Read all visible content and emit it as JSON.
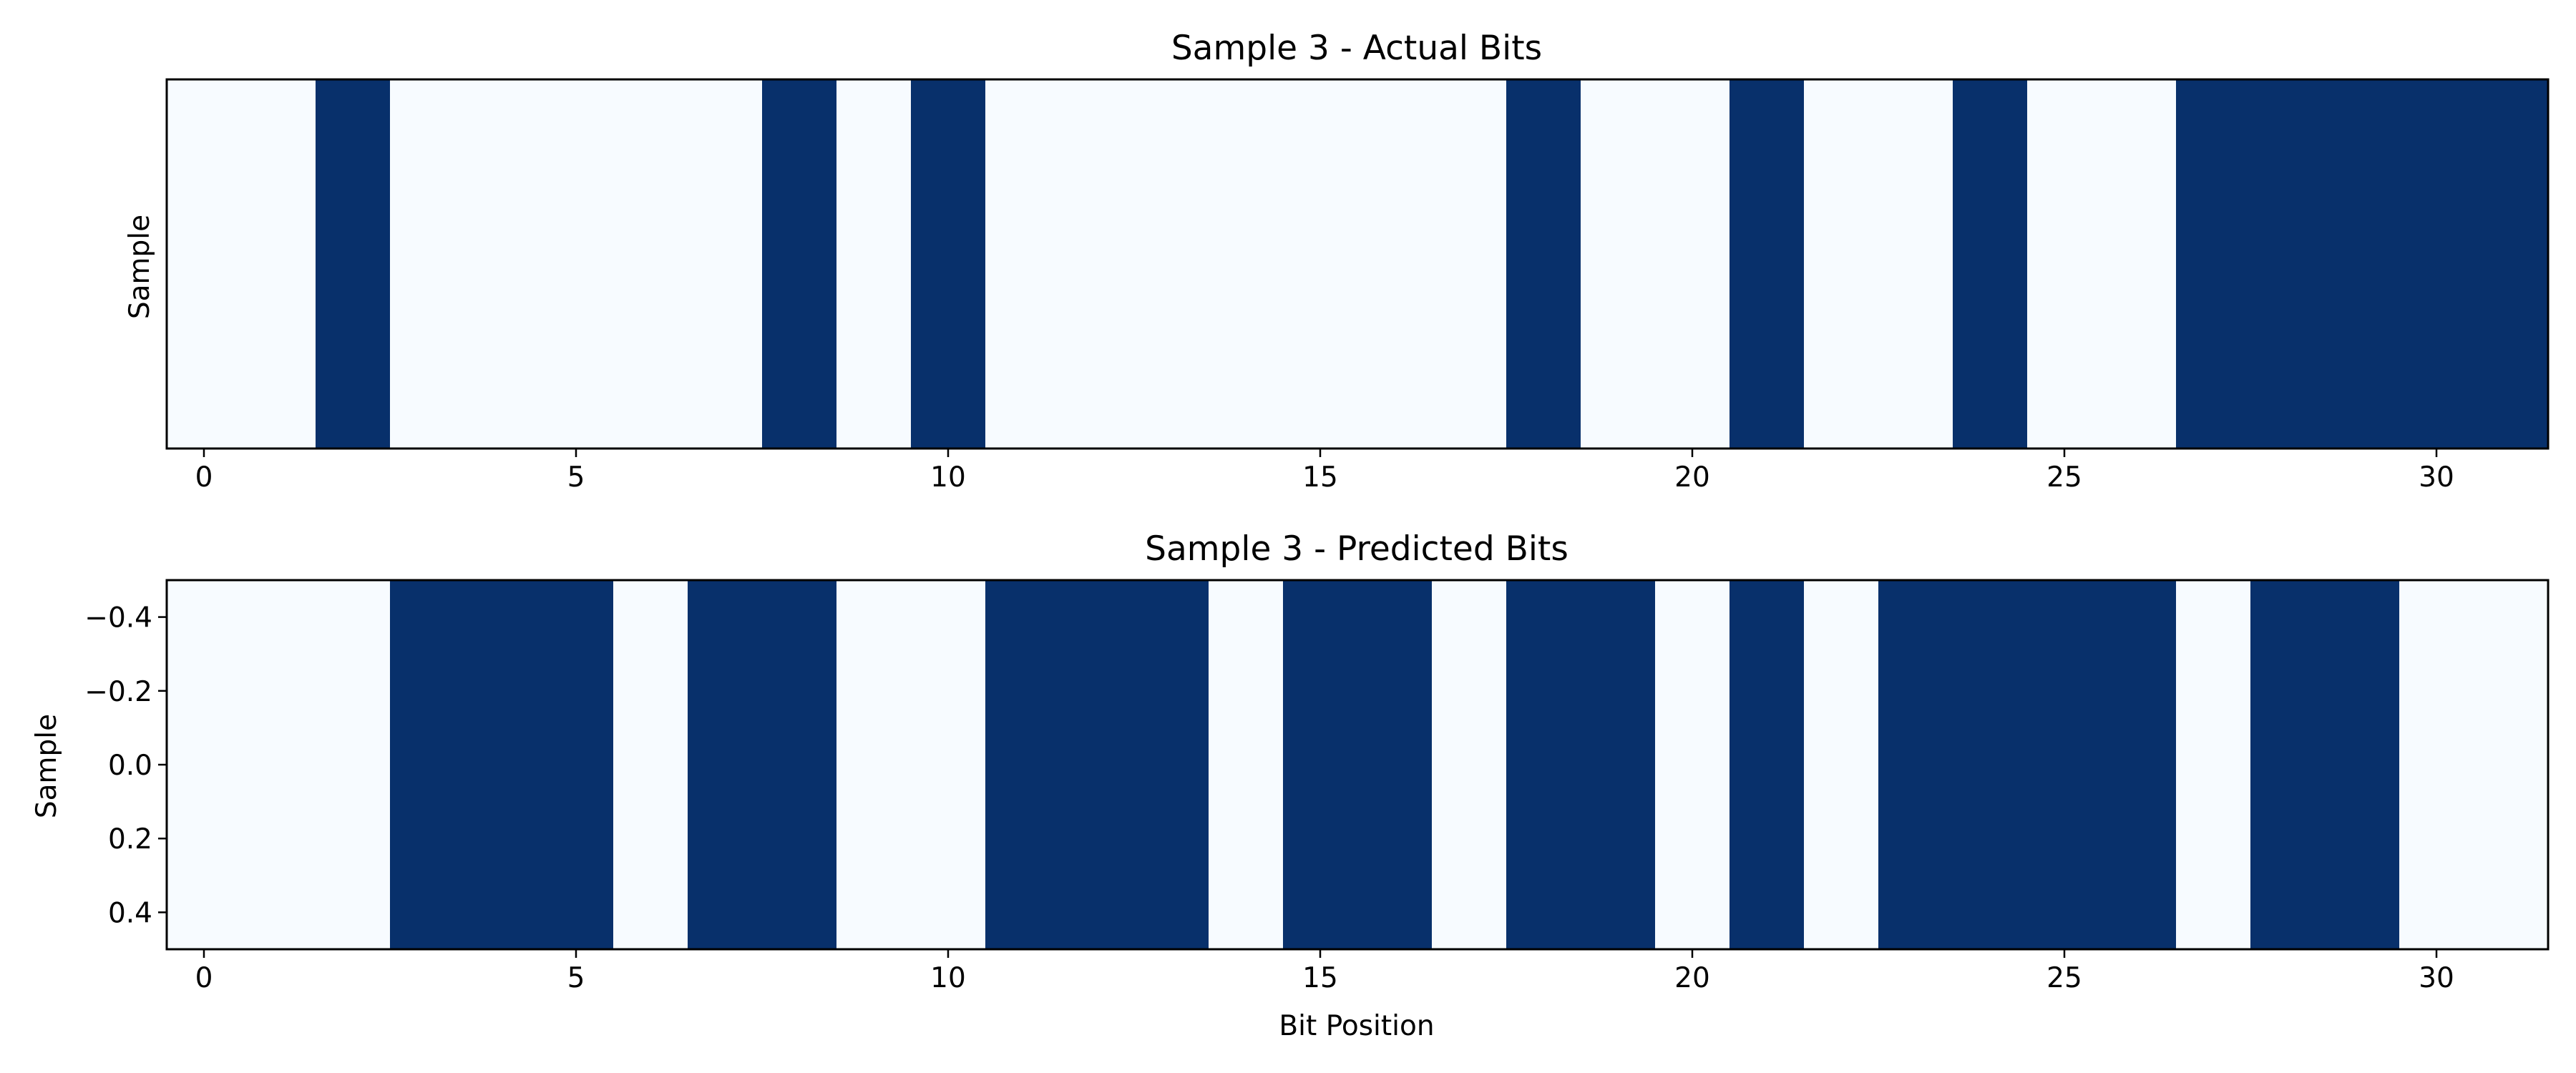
{
  "colors": {
    "bit_zero": "#f7fbff",
    "bit_one": "#08306b",
    "frame": "#000000",
    "text": "#000000"
  },
  "chart_data": [
    {
      "type": "heatmap",
      "title": "Sample 3 - Actual Bits",
      "xlabel": "",
      "ylabel": "Sample",
      "colormap": "Blues",
      "xlim": [
        -0.5,
        31.5
      ],
      "ylim": [
        -0.5,
        0.5
      ],
      "x_ticks": [
        0,
        5,
        10,
        15,
        20,
        25,
        30
      ],
      "y_ticks": [],
      "y_tick_labels": [],
      "values": [
        [
          0,
          0,
          1,
          0,
          0,
          0,
          0,
          0,
          1,
          0,
          1,
          0,
          0,
          0,
          0,
          0,
          0,
          0,
          1,
          0,
          0,
          1,
          0,
          0,
          1,
          0,
          0,
          1,
          1,
          1,
          1,
          1
        ]
      ]
    },
    {
      "type": "heatmap",
      "title": "Sample 3 - Predicted Bits",
      "xlabel": "Bit Position",
      "ylabel": "Sample",
      "colormap": "Blues",
      "xlim": [
        -0.5,
        31.5
      ],
      "ylim": [
        -0.5,
        0.5
      ],
      "x_ticks": [
        0,
        5,
        10,
        15,
        20,
        25,
        30
      ],
      "y_ticks": [
        -0.4,
        -0.2,
        0.0,
        0.2,
        0.4
      ],
      "y_tick_labels": [
        "−0.4",
        "−0.2",
        "0.0",
        "0.2",
        "0.4"
      ],
      "values": [
        [
          0,
          0,
          0,
          1,
          1,
          1,
          0,
          1,
          1,
          0,
          0,
          1,
          1,
          1,
          0,
          1,
          1,
          0,
          1,
          1,
          0,
          1,
          0,
          1,
          1,
          1,
          1,
          0,
          1,
          1,
          0,
          0
        ]
      ]
    }
  ]
}
